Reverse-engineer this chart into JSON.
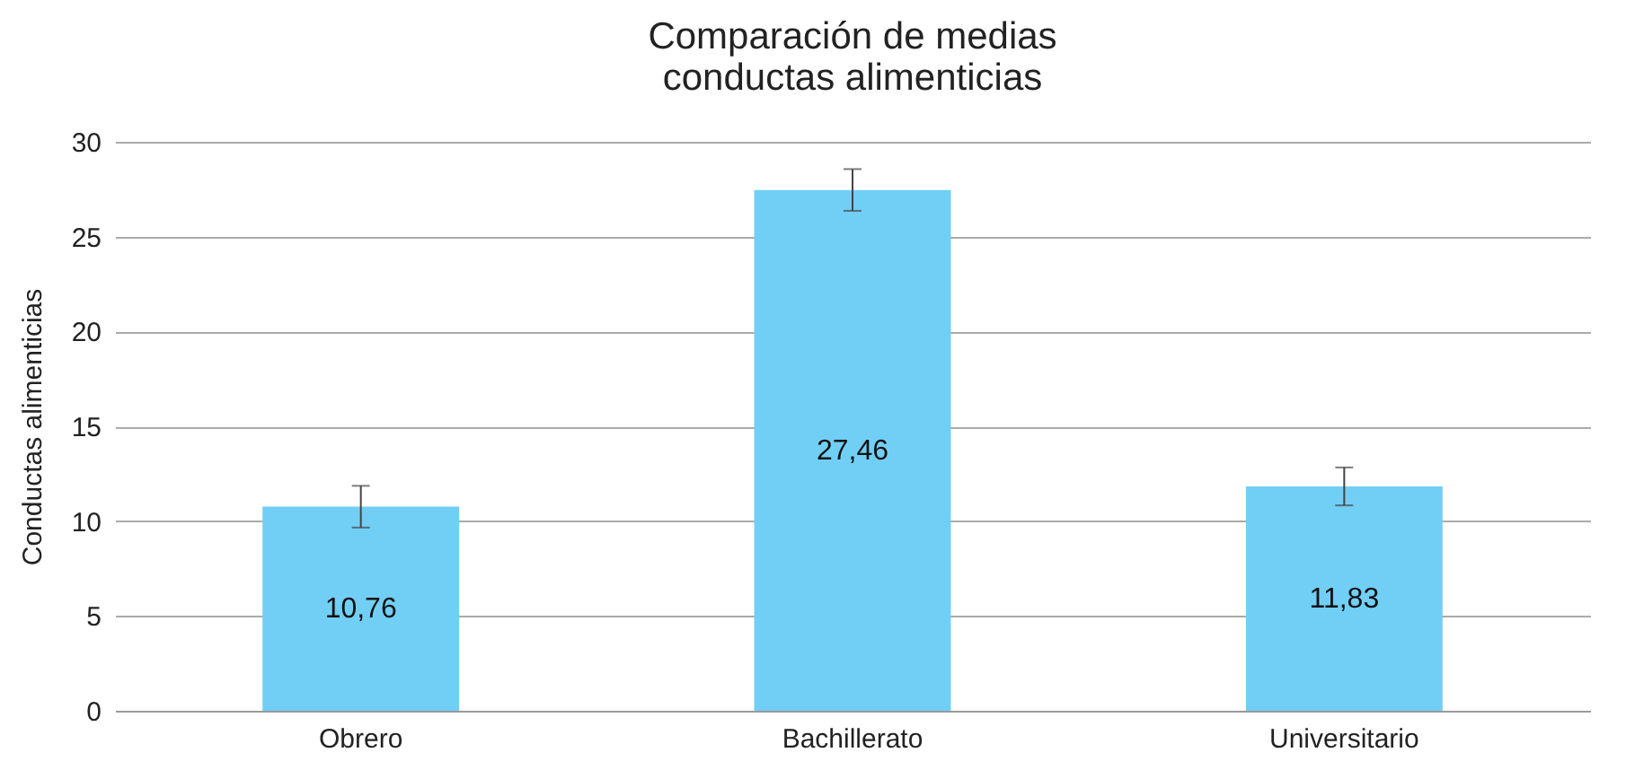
{
  "chart_data": {
    "type": "bar",
    "title": [
      "Comparación de medias",
      "conductas alimenticias"
    ],
    "ylabel": "Conductas alimenticias",
    "categories": [
      "Obrero",
      "Bachillerato",
      "Universitario"
    ],
    "values": [
      10.76,
      27.46,
      11.83
    ],
    "value_labels": [
      "10,76",
      "27,46",
      "11,83"
    ],
    "errors": [
      1.1,
      1.1,
      1.0
    ],
    "color": "#71cff5",
    "ylim": [
      0,
      30
    ],
    "yticks": [
      0,
      5,
      10,
      15,
      20,
      25,
      30
    ],
    "grid": "y"
  }
}
